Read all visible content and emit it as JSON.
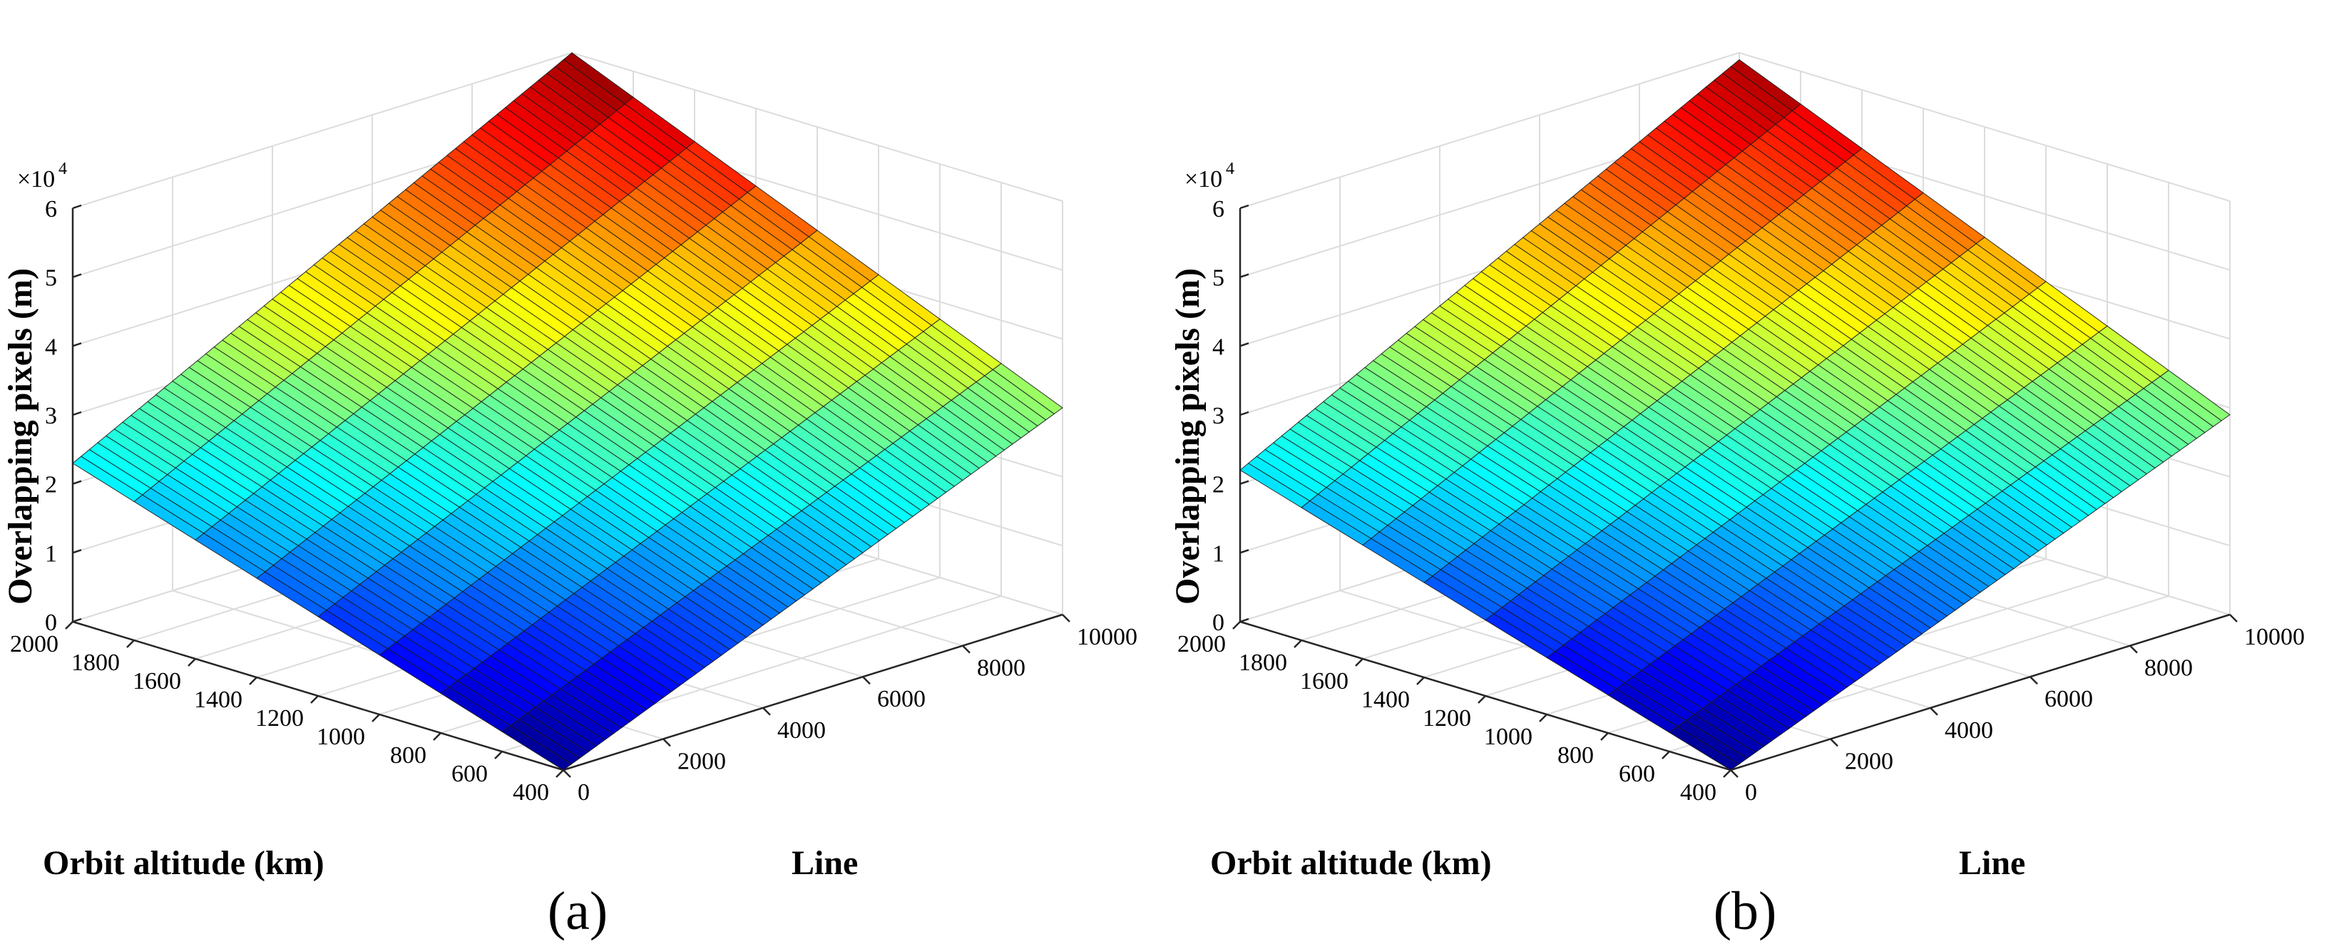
{
  "chart_data": [
    {
      "type": "surface",
      "panel_label": "(a)",
      "xlabel": "Orbit altitude (km)",
      "ylabel": "Line",
      "zlabel": "Overlapping pixels (m)",
      "z_multiplier_label": "×10",
      "z_multiplier_exponent": "4",
      "x_range": [
        400,
        2000
      ],
      "y_range": [
        0,
        10000
      ],
      "z_range": [
        0,
        60000
      ],
      "x_ticks": [
        "400",
        "600",
        "800",
        "1000",
        "1200",
        "1400",
        "1600",
        "1800",
        "2000"
      ],
      "y_ticks": [
        "0",
        "2000",
        "4000",
        "6000",
        "8000",
        "10000"
      ],
      "z_ticks": [
        "0",
        "1",
        "2",
        "3",
        "4",
        "5",
        "6"
      ],
      "corners": {
        "alt400_line0": 0,
        "alt2000_line0": 23000,
        "alt400_line10000": 30000,
        "alt2000_line10000": 60000
      },
      "colormap": "jet",
      "grid": true
    },
    {
      "type": "surface",
      "panel_label": "(b)",
      "xlabel": "Orbit altitude (km)",
      "ylabel": "Line",
      "zlabel": "Overlapping pixels (m)",
      "z_multiplier_label": "×10",
      "z_multiplier_exponent": "4",
      "x_range": [
        400,
        2000
      ],
      "y_range": [
        0,
        10000
      ],
      "z_range": [
        0,
        60000
      ],
      "x_ticks": [
        "400",
        "600",
        "800",
        "1000",
        "1200",
        "1400",
        "1600",
        "1800",
        "2000"
      ],
      "y_ticks": [
        "0",
        "2000",
        "4000",
        "6000",
        "8000",
        "10000"
      ],
      "z_ticks": [
        "0",
        "1",
        "2",
        "3",
        "4",
        "5",
        "6"
      ],
      "corners": {
        "alt400_line0": 0,
        "alt2000_line0": 22000,
        "alt400_line10000": 29000,
        "alt2000_line10000": 59000
      },
      "colormap": "jet",
      "grid": true
    }
  ]
}
